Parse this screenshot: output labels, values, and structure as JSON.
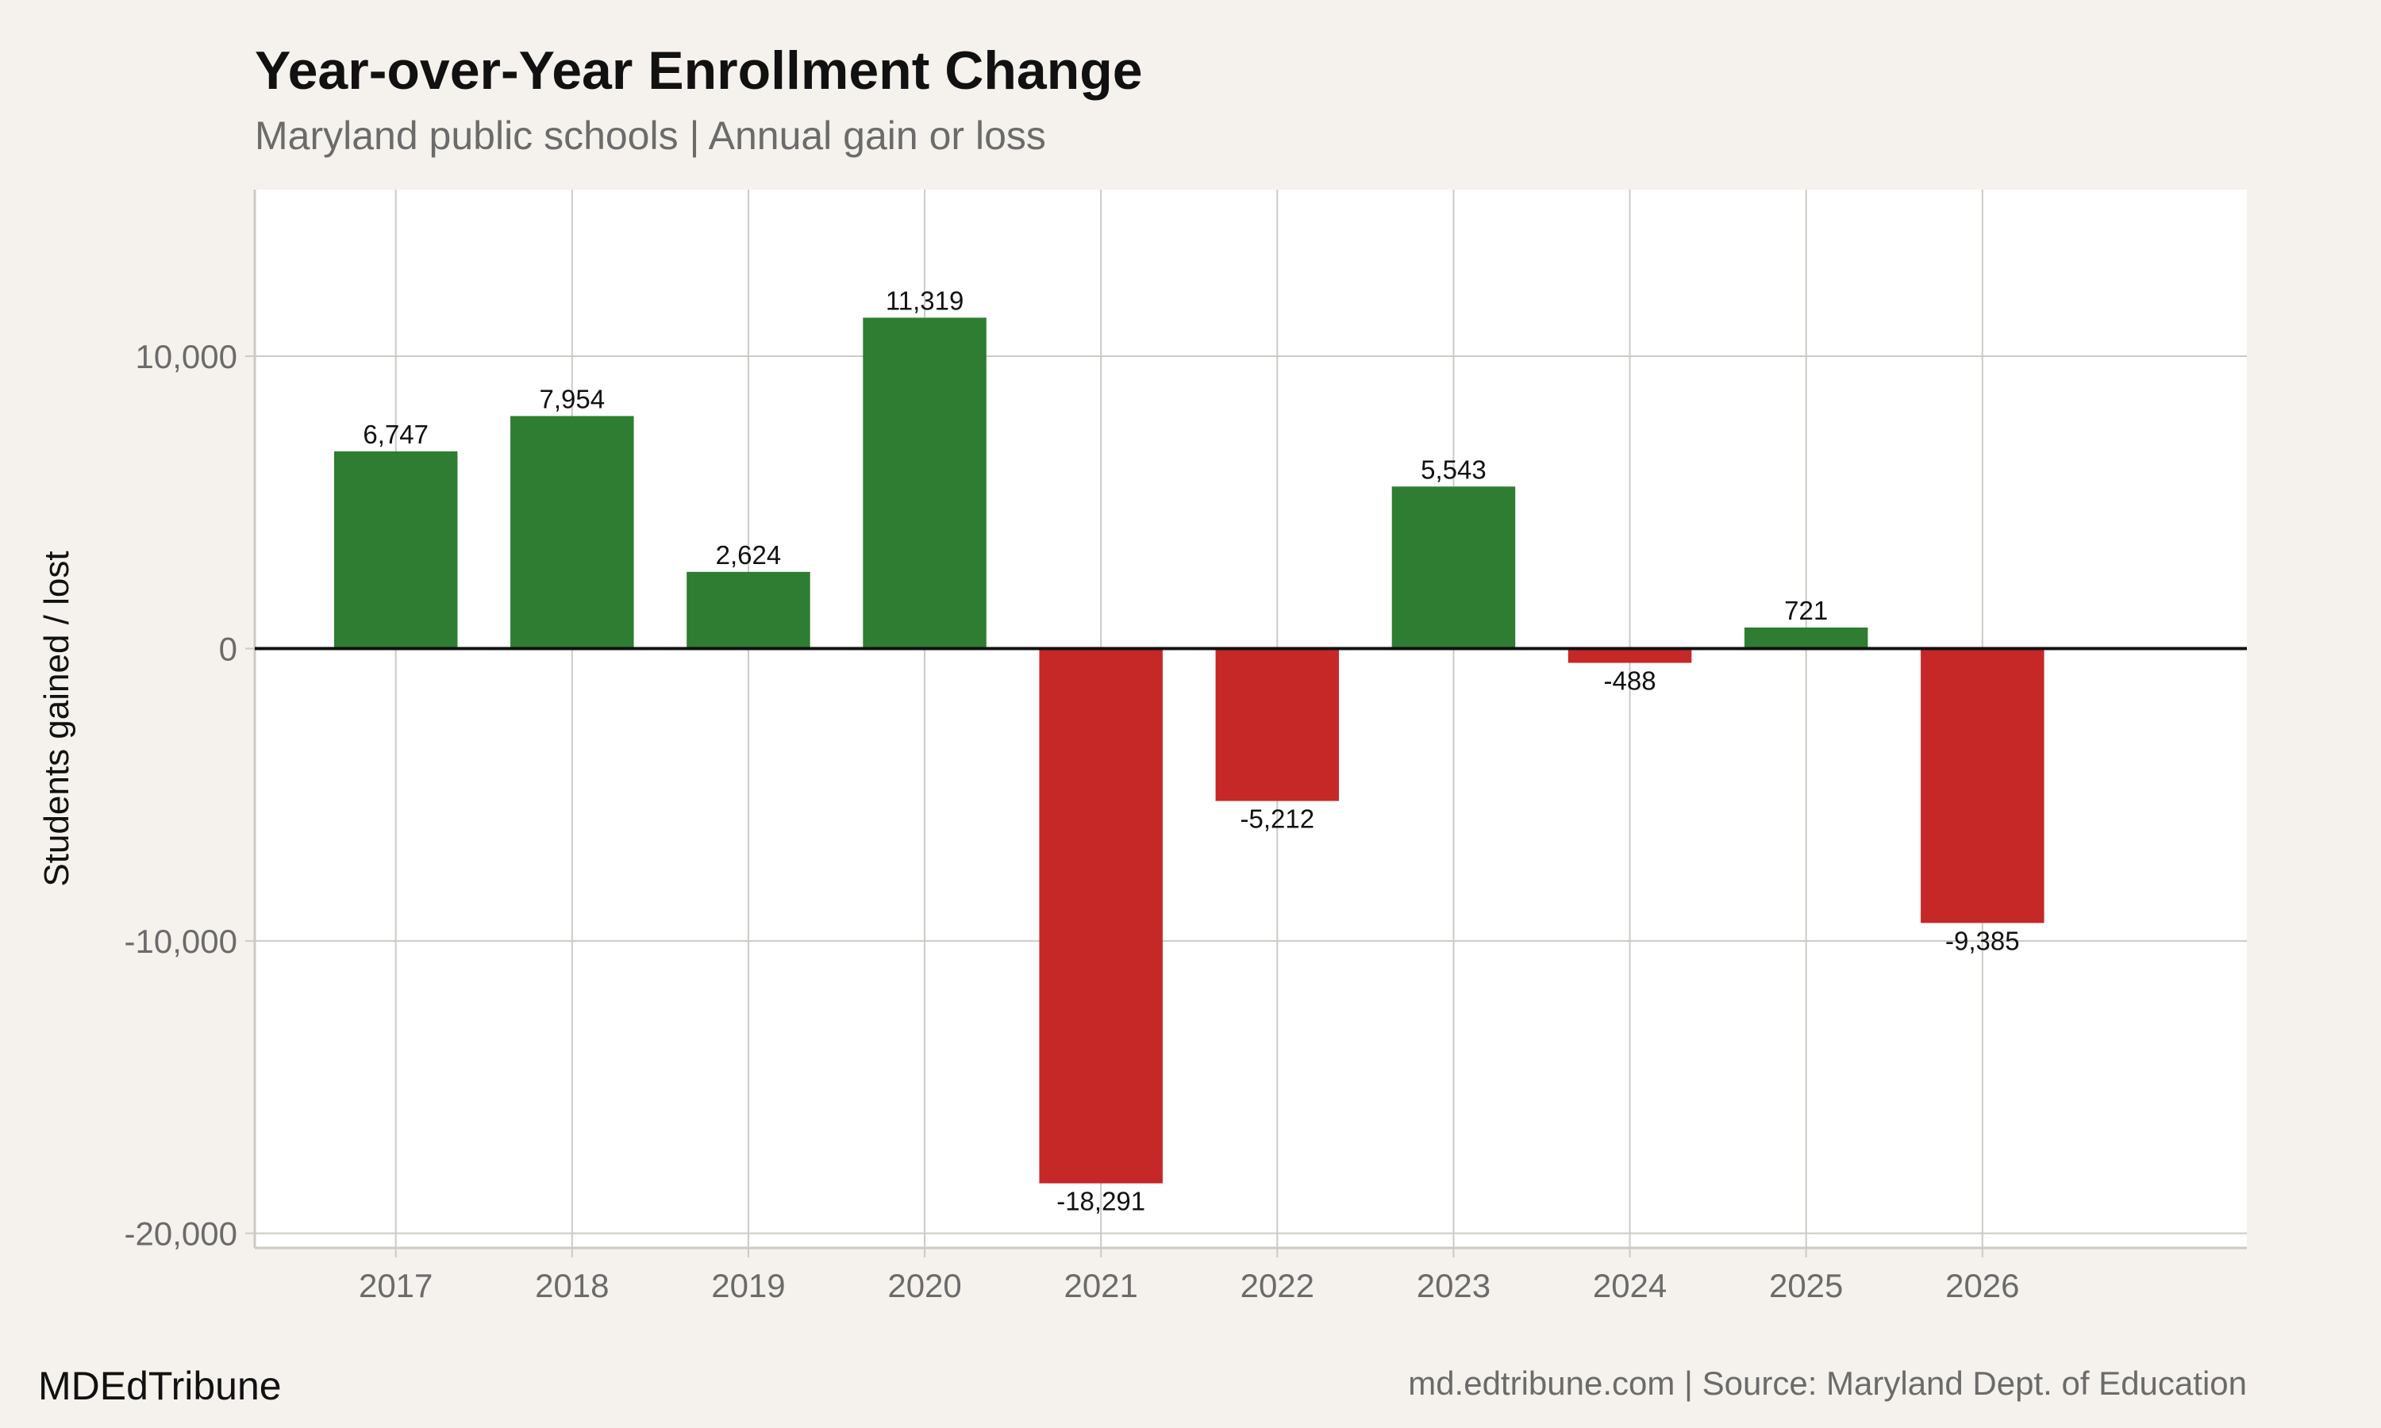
{
  "chart_data": {
    "type": "bar",
    "title": "Year-over-Year Enrollment Change",
    "subtitle": "Maryland public schools | Annual gain or loss",
    "xlabel": "",
    "ylabel": "Students gained / lost",
    "categories": [
      "2017",
      "2018",
      "2019",
      "2020",
      "2021",
      "2022",
      "2023",
      "2024",
      "2025",
      "2026"
    ],
    "x": [
      2017,
      2018,
      2019,
      2020,
      2021,
      2022,
      2023,
      2024,
      2025,
      2026
    ],
    "values": [
      6747,
      7954,
      2624,
      11319,
      -18291,
      -5212,
      5543,
      -488,
      721,
      -9385
    ],
    "data_labels": [
      "6,747",
      "7,954",
      "2,624",
      "11,319",
      "-18,291",
      "-5,212",
      "5,543",
      "-488",
      "721",
      "-9,385"
    ],
    "xlim": [
      2016.2,
      2027.5
    ],
    "ylim": [
      -20500,
      15700
    ],
    "yticks": [
      -20000,
      -10000,
      0,
      10000
    ],
    "ytick_labels": [
      "-20,000",
      "-10,000",
      "0",
      "10,000"
    ],
    "grid": true,
    "colors": {
      "positive": "#2e7d32",
      "negative": "#c62828",
      "panel": "#ffffff",
      "background": "#f5f2ed",
      "grid": "#cccac4",
      "zero_line": "#111111"
    }
  },
  "footer": {
    "brand": "MDEdTribune",
    "source": "md.edtribune.com | Source: Maryland Dept. of Education"
  }
}
